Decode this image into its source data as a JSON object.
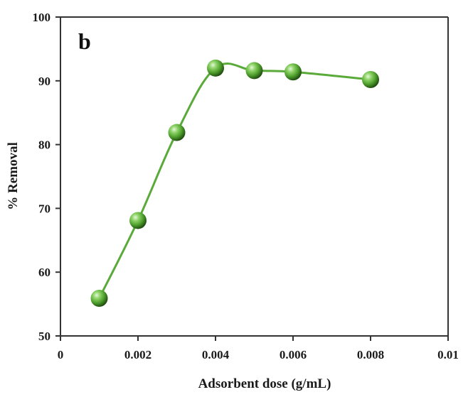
{
  "chart_data": {
    "type": "line",
    "panel_label": "b",
    "xlabel": "Adsorbent dose (g/mL)",
    "ylabel": "% Removal",
    "xlim": [
      0,
      0.01
    ],
    "ylim": [
      50,
      100
    ],
    "xticks": [
      0,
      0.002,
      0.004,
      0.006,
      0.008,
      0.01
    ],
    "xtick_labels": [
      "0",
      "0.002",
      "0.004",
      "0.006",
      "0.008",
      "0.01"
    ],
    "yticks": [
      50,
      60,
      70,
      80,
      90,
      100
    ],
    "ytick_labels": [
      "50",
      "60",
      "70",
      "80",
      "90",
      "100"
    ],
    "grid": false,
    "series": [
      {
        "x": [
          0.001,
          0.002,
          0.003,
          0.004,
          0.005,
          0.006,
          0.008
        ],
        "y": [
          55.9,
          68.1,
          81.9,
          92.0,
          91.6,
          91.4,
          90.2
        ],
        "color": "#5aaa3a",
        "marker": "sphere"
      }
    ]
  }
}
